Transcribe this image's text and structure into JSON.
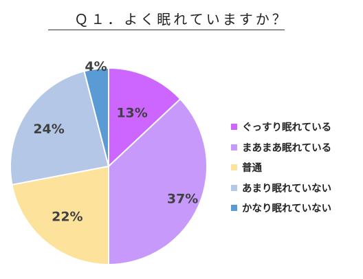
{
  "chart_data": {
    "type": "pie",
    "title": "Ｑ１．よく眠れていますか？",
    "categories": [
      "ぐっすり眠れている",
      "まあまあ眠れている",
      "普通",
      "あまり眠れていない",
      "かなり眠れていない"
    ],
    "values": [
      13,
      37,
      22,
      24,
      4
    ],
    "value_labels": [
      "13%",
      "37%",
      "22%",
      "24%",
      "4%"
    ],
    "colors": [
      "#cc66ff",
      "#c799fb",
      "#fde29b",
      "#b4c7e7",
      "#5b9bd5"
    ],
    "start": "12 o'clock",
    "direction": "clockwise",
    "legend_position": "right"
  }
}
